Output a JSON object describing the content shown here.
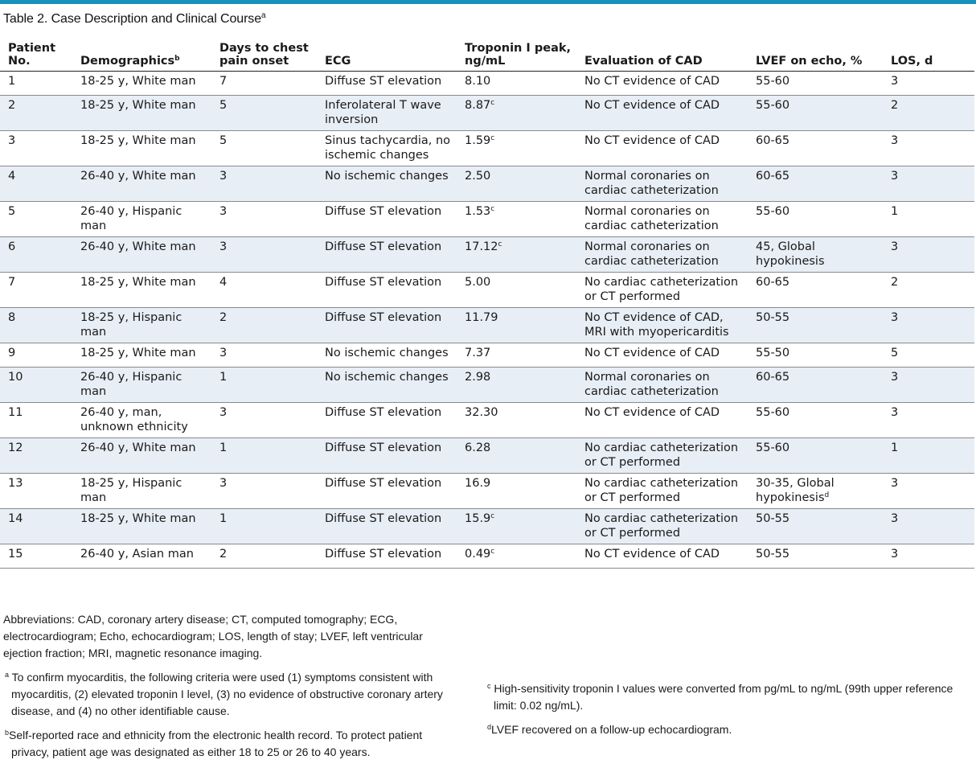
{
  "title": {
    "text": "Table 2. Case Description and Clinical Course",
    "sup": "a"
  },
  "colors": {
    "accent_rule": "#1a91bc",
    "stripe": "#e8eef5"
  },
  "headers": [
    {
      "line1": "Patient",
      "line2": "No.",
      "sup": ""
    },
    {
      "line1": "",
      "line2": "Demographics",
      "sup": "b"
    },
    {
      "line1": "Days to chest",
      "line2": "pain onset",
      "sup": ""
    },
    {
      "line1": "",
      "line2": "ECG",
      "sup": ""
    },
    {
      "line1": "Troponin I peak,",
      "line2": "ng/mL",
      "sup": ""
    },
    {
      "line1": "",
      "line2": "Evaluation of CAD",
      "sup": ""
    },
    {
      "line1": "",
      "line2": "LVEF on echo, %",
      "sup": ""
    },
    {
      "line1": "",
      "line2": "LOS, d",
      "sup": ""
    }
  ],
  "rows": [
    {
      "no": "1",
      "demo": "18-25 y, White man",
      "days": "7",
      "ecg": "Diffuse ST elevation",
      "trop": "8.10",
      "trop_sup": "",
      "cad": "No CT evidence of CAD",
      "lvef": "55-60",
      "lvef_sup": "",
      "los": "3"
    },
    {
      "no": "2",
      "demo": "18-25 y, White man",
      "days": "5",
      "ecg": "Inferolateral T wave inversion",
      "trop": "8.87",
      "trop_sup": "c",
      "cad": "No CT evidence of CAD",
      "lvef": "55-60",
      "lvef_sup": "",
      "los": "2"
    },
    {
      "no": "3",
      "demo": "18-25 y, White man",
      "days": "5",
      "ecg": "Sinus tachycardia, no ischemic changes",
      "trop": "1.59",
      "trop_sup": "c",
      "cad": "No CT evidence of CAD",
      "lvef": "60-65",
      "lvef_sup": "",
      "los": "3"
    },
    {
      "no": "4",
      "demo": "26-40 y, White man",
      "days": "3",
      "ecg": "No ischemic changes",
      "trop": "2.50",
      "trop_sup": "",
      "cad": "Normal coronaries on cardiac catheterization",
      "lvef": "60-65",
      "lvef_sup": "",
      "los": "3"
    },
    {
      "no": "5",
      "demo": "26-40 y, Hispanic man",
      "days": "3",
      "ecg": "Diffuse ST elevation",
      "trop": "1.53",
      "trop_sup": "c",
      "cad": "Normal coronaries on cardiac catheterization",
      "lvef": "55-60",
      "lvef_sup": "",
      "los": "1"
    },
    {
      "no": "6",
      "demo": "26-40 y, White man",
      "days": "3",
      "ecg": "Diffuse ST elevation",
      "trop": "17.12",
      "trop_sup": "c",
      "cad": "Normal coronaries on cardiac catheterization",
      "lvef": "45, Global hypokinesis",
      "lvef_sup": "",
      "los": "3"
    },
    {
      "no": "7",
      "demo": "18-25 y, White man",
      "days": "4",
      "ecg": "Diffuse ST elevation",
      "trop": "5.00",
      "trop_sup": "",
      "cad": "No cardiac catheterization or CT performed",
      "lvef": "60-65",
      "lvef_sup": "",
      "los": "2"
    },
    {
      "no": "8",
      "demo": "18-25 y, Hispanic man",
      "days": "2",
      "ecg": "Diffuse ST elevation",
      "trop": "11.79",
      "trop_sup": "",
      "cad": "No CT evidence of CAD, MRI with myopericarditis",
      "lvef": "50-55",
      "lvef_sup": "",
      "los": "3"
    },
    {
      "no": "9",
      "demo": "18-25 y, White man",
      "days": "3",
      "ecg": "No ischemic changes",
      "trop": "7.37",
      "trop_sup": "",
      "cad": "No CT evidence of CAD",
      "lvef": "55-50",
      "lvef_sup": "",
      "los": "5"
    },
    {
      "no": "10",
      "demo": "26-40 y, Hispanic man",
      "days": "1",
      "ecg": "No ischemic changes",
      "trop": "2.98",
      "trop_sup": "",
      "cad": "Normal coronaries on cardiac catheterization",
      "lvef": "60-65",
      "lvef_sup": "",
      "los": "3"
    },
    {
      "no": "11",
      "demo": "26-40 y, man, unknown ethnicity",
      "days": "3",
      "ecg": "Diffuse ST elevation",
      "trop": "32.30",
      "trop_sup": "",
      "cad": "No CT evidence of CAD",
      "lvef": "55-60",
      "lvef_sup": "",
      "los": "3"
    },
    {
      "no": "12",
      "demo": "26-40 y, White man",
      "days": "1",
      "ecg": "Diffuse ST elevation",
      "trop": "6.28",
      "trop_sup": "",
      "cad": "No cardiac catheterization or CT performed",
      "lvef": "55-60",
      "lvef_sup": "",
      "los": "1"
    },
    {
      "no": "13",
      "demo": "18-25 y, Hispanic man",
      "days": "3",
      "ecg": "Diffuse ST elevation",
      "trop": "16.9",
      "trop_sup": "",
      "cad": "No cardiac catheterization or CT performed",
      "lvef": "30-35, Global hypokinesis",
      "lvef_sup": "d",
      "los": "3"
    },
    {
      "no": "14",
      "demo": "18-25 y, White man",
      "days": "1",
      "ecg": "Diffuse ST elevation",
      "trop": "15.9",
      "trop_sup": "c",
      "cad": "No cardiac catheterization or CT performed",
      "lvef": "50-55",
      "lvef_sup": "",
      "los": "3"
    },
    {
      "no": "15",
      "demo": "26-40 y, Asian man",
      "days": "2",
      "ecg": "Diffuse ST elevation",
      "trop": "0.49",
      "trop_sup": "c",
      "cad": "No CT evidence of CAD",
      "lvef": "50-55",
      "lvef_sup": "",
      "los": "3"
    }
  ],
  "footnotes": {
    "abbreviations": "Abbreviations: CAD, coronary artery disease; CT, computed tomography; ECG, electrocardiogram; Echo, echocardiogram; LOS, length of stay; LVEF, left ventricular ejection fraction; MRI, magnetic resonance imaging.",
    "a": {
      "mark": "a",
      "text": "To confirm myocarditis, the following criteria were used (1) symptoms consistent with myocarditis, (2) elevated troponin I level, (3) no evidence of obstructive coronary artery disease, and (4) no other identifiable cause."
    },
    "b": {
      "mark": "b",
      "text": "Self-reported race and ethnicity from the electronic health record. To protect patient privacy, patient age was designated as either 18 to 25 or 26 to 40 years."
    },
    "c": {
      "mark": "c",
      "text": "High-sensitivity troponin I values were converted from pg/mL to ng/mL (99th upper reference limit: 0.02 ng/mL)."
    },
    "d": {
      "mark": "d",
      "text": "LVEF recovered on a follow-up echocardiogram."
    }
  }
}
